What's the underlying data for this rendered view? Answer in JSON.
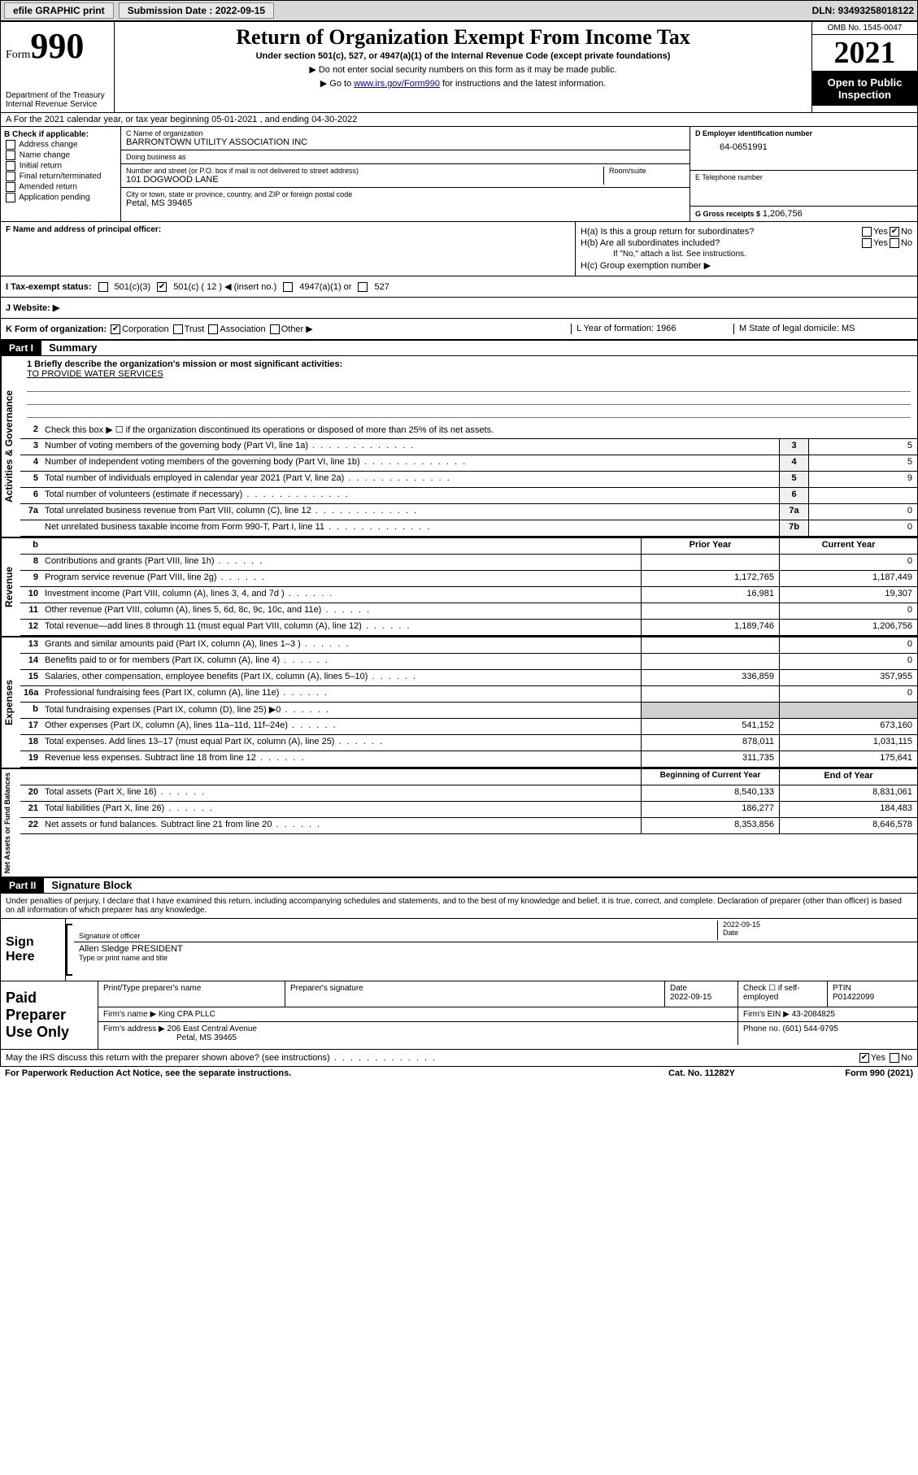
{
  "topbar": {
    "efile": "efile GRAPHIC print",
    "submission_label": "Submission Date : 2022-09-15",
    "dln": "DLN: 93493258018122"
  },
  "header": {
    "form_word": "Form",
    "form_num": "990",
    "dept": "Department of the Treasury",
    "irs": "Internal Revenue Service",
    "title": "Return of Organization Exempt From Income Tax",
    "sub": "Under section 501(c), 527, or 4947(a)(1) of the Internal Revenue Code (except private foundations)",
    "note1": "▶ Do not enter social security numbers on this form as it may be made public.",
    "note2_pre": "▶ Go to ",
    "note2_link": "www.irs.gov/Form990",
    "note2_post": " for instructions and the latest information.",
    "omb": "OMB No. 1545-0047",
    "year": "2021",
    "open": "Open to Public Inspection"
  },
  "row_a": "A For the 2021 calendar year, or tax year beginning 05-01-2021   , and ending 04-30-2022",
  "check_b": {
    "label": "B Check if applicable:",
    "opts": [
      "Address change",
      "Name change",
      "Initial return",
      "Final return/terminated",
      "Amended return",
      "Application pending"
    ]
  },
  "box_c": {
    "lbl_name": "C Name of organization",
    "name": "BARRONTOWN UTILITY ASSOCIATION INC",
    "lbl_dba": "Doing business as",
    "dba": "",
    "lbl_addr": "Number and street (or P.O. box if mail is not delivered to street address)",
    "addr": "101 DOGWOOD LANE",
    "lbl_room": "Room/suite",
    "room": "",
    "lbl_city": "City or town, state or province, country, and ZIP or foreign postal code",
    "city": "Petal, MS  39465"
  },
  "box_d": {
    "lbl": "D Employer identification number",
    "val": "64-0651991"
  },
  "box_e": {
    "lbl": "E Telephone number",
    "val": ""
  },
  "box_g": {
    "lbl": "G Gross receipts $",
    "val": "1,206,756"
  },
  "box_f": {
    "lbl": "F  Name and address of principal officer:",
    "val": ""
  },
  "box_h": {
    "ha": "H(a)  Is this a group return for subordinates?",
    "hb": "H(b)  Are all subordinates included?",
    "hb_note": "If \"No,\" attach a list. See instructions.",
    "hc": "H(c)  Group exemption number ▶",
    "yes": "Yes",
    "no": "No"
  },
  "row_i": {
    "lbl": "I   Tax-exempt status:",
    "o1": "501(c)(3)",
    "o2": "501(c) ( 12 ) ◀ (insert no.)",
    "o3": "4947(a)(1) or",
    "o4": "527"
  },
  "row_j": {
    "lbl": "J   Website: ▶",
    "val": ""
  },
  "row_k": {
    "lbl": "K Form of organization:",
    "o1": "Corporation",
    "o2": "Trust",
    "o3": "Association",
    "o4": "Other ▶",
    "l": "L Year of formation: 1966",
    "m": "M State of legal domicile: MS"
  },
  "part1": {
    "hdr": "Part I",
    "title": "Summary"
  },
  "mission": {
    "q": "1   Briefly describe the organization's mission or most significant activities:",
    "a": "TO PROVIDE WATER SERVICES"
  },
  "gov_lines": [
    {
      "n": "2",
      "d": "Check this box ▶ ☐  if the organization discontinued its operations or disposed of more than 25% of its net assets."
    },
    {
      "n": "3",
      "d": "Number of voting members of the governing body (Part VI, line 1a)",
      "c": "3",
      "v": "5"
    },
    {
      "n": "4",
      "d": "Number of independent voting members of the governing body (Part VI, line 1b)",
      "c": "4",
      "v": "5"
    },
    {
      "n": "5",
      "d": "Total number of individuals employed in calendar year 2021 (Part V, line 2a)",
      "c": "5",
      "v": "9"
    },
    {
      "n": "6",
      "d": "Total number of volunteers (estimate if necessary)",
      "c": "6",
      "v": ""
    },
    {
      "n": "7a",
      "d": "Total unrelated business revenue from Part VIII, column (C), line 12",
      "c": "7a",
      "v": "0"
    },
    {
      "n": "",
      "d": "Net unrelated business taxable income from Form 990-T, Part I, line 11",
      "c": "7b",
      "v": "0"
    }
  ],
  "col_hdr": {
    "b": "b",
    "prior": "Prior Year",
    "current": "Current Year"
  },
  "rev_lines": [
    {
      "n": "8",
      "d": "Contributions and grants (Part VIII, line 1h)",
      "p": "",
      "c": "0"
    },
    {
      "n": "9",
      "d": "Program service revenue (Part VIII, line 2g)",
      "p": "1,172,765",
      "c": "1,187,449"
    },
    {
      "n": "10",
      "d": "Investment income (Part VIII, column (A), lines 3, 4, and 7d )",
      "p": "16,981",
      "c": "19,307"
    },
    {
      "n": "11",
      "d": "Other revenue (Part VIII, column (A), lines 5, 6d, 8c, 9c, 10c, and 11e)",
      "p": "",
      "c": "0"
    },
    {
      "n": "12",
      "d": "Total revenue—add lines 8 through 11 (must equal Part VIII, column (A), line 12)",
      "p": "1,189,746",
      "c": "1,206,756"
    }
  ],
  "exp_lines": [
    {
      "n": "13",
      "d": "Grants and similar amounts paid (Part IX, column (A), lines 1–3 )",
      "p": "",
      "c": "0"
    },
    {
      "n": "14",
      "d": "Benefits paid to or for members (Part IX, column (A), line 4)",
      "p": "",
      "c": "0"
    },
    {
      "n": "15",
      "d": "Salaries, other compensation, employee benefits (Part IX, column (A), lines 5–10)",
      "p": "336,859",
      "c": "357,955"
    },
    {
      "n": "16a",
      "d": "Professional fundraising fees (Part IX, column (A), line 11e)",
      "p": "",
      "c": "0"
    },
    {
      "n": "b",
      "d": "Total fundraising expenses (Part IX, column (D), line 25) ▶0",
      "p": "shade",
      "c": "shade"
    },
    {
      "n": "17",
      "d": "Other expenses (Part IX, column (A), lines 11a–11d, 11f–24e)",
      "p": "541,152",
      "c": "673,160"
    },
    {
      "n": "18",
      "d": "Total expenses. Add lines 13–17 (must equal Part IX, column (A), line 25)",
      "p": "878,011",
      "c": "1,031,115"
    },
    {
      "n": "19",
      "d": "Revenue less expenses. Subtract line 18 from line 12",
      "p": "311,735",
      "c": "175,641"
    }
  ],
  "na_hdr": {
    "b": "Beginning of Current Year",
    "e": "End of Year"
  },
  "na_lines": [
    {
      "n": "20",
      "d": "Total assets (Part X, line 16)",
      "p": "8,540,133",
      "c": "8,831,061"
    },
    {
      "n": "21",
      "d": "Total liabilities (Part X, line 26)",
      "p": "186,277",
      "c": "184,483"
    },
    {
      "n": "22",
      "d": "Net assets or fund balances. Subtract line 21 from line 20",
      "p": "8,353,856",
      "c": "8,646,578"
    }
  ],
  "vtabs": {
    "gov": "Activities & Governance",
    "rev": "Revenue",
    "exp": "Expenses",
    "na": "Net Assets or Fund Balances"
  },
  "part2": {
    "hdr": "Part II",
    "title": "Signature Block"
  },
  "part2_note": "Under penalties of perjury, I declare that I have examined this return, including accompanying schedules and statements, and to the best of my knowledge and belief, it is true, correct, and complete. Declaration of preparer (other than officer) is based on all information of which preparer has any knowledge.",
  "sign": {
    "here": "Sign Here",
    "sig_lbl": "Signature of officer",
    "date_lbl": "Date",
    "date_val": "2022-09-15",
    "name_val": "Allen Sledge  PRESIDENT",
    "name_lbl": "Type or print name and title"
  },
  "prep": {
    "title": "Paid Preparer Use Only",
    "h1": "Print/Type preparer's name",
    "h2": "Preparer's signature",
    "h3": "Date",
    "h3v": "2022-09-15",
    "h4": "Check ☐ if self-employed",
    "h5": "PTIN",
    "h5v": "P01422099",
    "firm_lbl": "Firm's name    ▶",
    "firm_val": "King CPA PLLC",
    "ein_lbl": "Firm's EIN ▶",
    "ein_val": "43-2084825",
    "addr_lbl": "Firm's address ▶",
    "addr_val1": "206 East Central Avenue",
    "addr_val2": "Petal, MS  39465",
    "phone_lbl": "Phone no.",
    "phone_val": "(601) 544-9795"
  },
  "footer": {
    "q": "May the IRS discuss this return with the preparer shown above? (see instructions)",
    "yes": "Yes",
    "no": "No",
    "pra": "For Paperwork Reduction Act Notice, see the separate instructions.",
    "cat": "Cat. No. 11282Y",
    "form": "Form 990 (2021)"
  }
}
